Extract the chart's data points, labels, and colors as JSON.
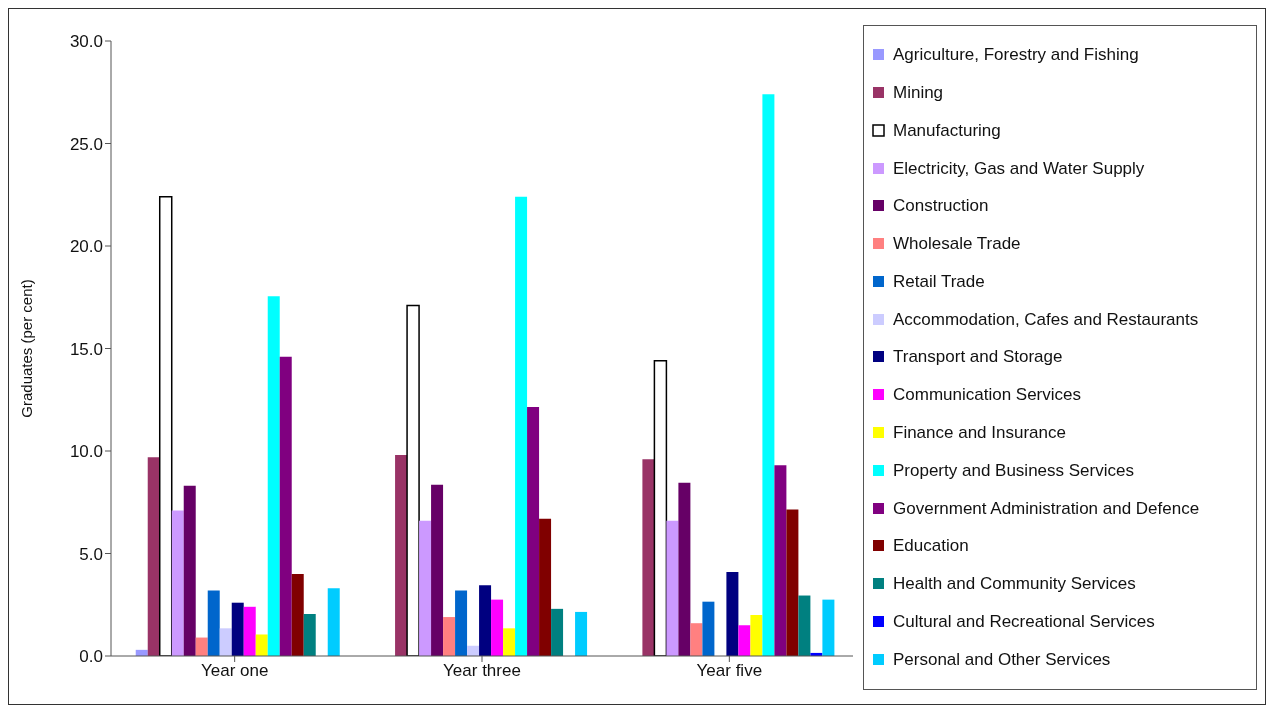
{
  "chart_data": {
    "type": "bar",
    "ylabel": "Graduates (per cent)",
    "categories": [
      "Year one",
      "Year three",
      "Year five"
    ],
    "ylim": [
      0,
      30
    ],
    "yticks": [
      {
        "value": 0,
        "label": "0.0"
      },
      {
        "value": 5,
        "label": "5.0"
      },
      {
        "value": 10,
        "label": "10.0"
      },
      {
        "value": 15,
        "label": "15.0"
      },
      {
        "value": 20,
        "label": "20.0"
      },
      {
        "value": 25,
        "label": "25.0"
      },
      {
        "value": 30,
        "label": "30.0"
      }
    ],
    "grid": false,
    "legend": "right",
    "series": [
      {
        "name": "Agriculture, Forestry and Fishing",
        "color": "#9999ff",
        "values": [
          0.3,
          0,
          0
        ]
      },
      {
        "name": "Mining",
        "color": "#993366",
        "values": [
          9.7,
          9.8,
          9.6
        ]
      },
      {
        "name": "Manufacturing",
        "color": "#ffffff",
        "values": [
          22.4,
          17.1,
          14.4
        ]
      },
      {
        "name": "Electricity, Gas and Water Supply",
        "color": "#cc99ff",
        "values": [
          7.1,
          6.6,
          6.6
        ]
      },
      {
        "name": "Construction",
        "color": "#660066",
        "values": [
          8.3,
          8.35,
          8.45
        ]
      },
      {
        "name": "Wholesale Trade",
        "color": "#ff8080",
        "values": [
          0.9,
          1.9,
          1.6
        ]
      },
      {
        "name": "Retail Trade",
        "color": "#0066cc",
        "values": [
          3.2,
          3.2,
          2.65
        ]
      },
      {
        "name": "Accommodation, Cafes and Restaurants",
        "color": "#ccccff",
        "values": [
          1.35,
          0.5,
          0
        ]
      },
      {
        "name": "Transport and Storage",
        "color": "#000080",
        "values": [
          2.6,
          3.45,
          4.1
        ]
      },
      {
        "name": "Communication Services",
        "color": "#ff00ff",
        "values": [
          2.4,
          2.75,
          1.5
        ]
      },
      {
        "name": "Finance and Insurance",
        "color": "#ffff00",
        "values": [
          1.05,
          1.35,
          2.0
        ]
      },
      {
        "name": "Property and Business Services",
        "color": "#00ffff",
        "values": [
          17.55,
          22.4,
          27.4
        ]
      },
      {
        "name": "Government Administration and Defence",
        "color": "#800080",
        "values": [
          14.6,
          12.15,
          9.3
        ]
      },
      {
        "name": "Education",
        "color": "#800000",
        "values": [
          4.0,
          6.7,
          7.15
        ]
      },
      {
        "name": "Health and Community Services",
        "color": "#008080",
        "values": [
          2.05,
          2.3,
          2.95
        ]
      },
      {
        "name": "Cultural and Recreational Services",
        "color": "#0000ff",
        "values": [
          0,
          0,
          0.15
        ]
      },
      {
        "name": "Personal and Other Services",
        "color": "#00ccff",
        "values": [
          3.3,
          2.15,
          2.75
        ]
      }
    ]
  }
}
